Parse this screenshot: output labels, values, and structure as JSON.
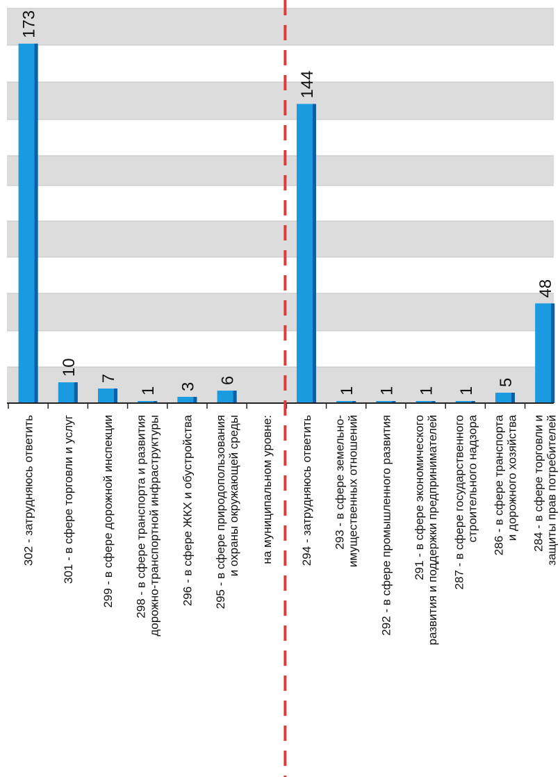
{
  "chart_data": {
    "type": "bar",
    "orientation": "rotated-90-ccw",
    "title": "",
    "xlabel": "",
    "ylabel": "",
    "ylim": [
      0,
      190
    ],
    "grid": "alternating-bands",
    "colors": {
      "bar": "#1a9ae0",
      "bar_shade": "#0d5fa8",
      "band": "#dcdcdc",
      "divider": "#e03a3a",
      "axis": "#222222"
    },
    "categories": [
      [
        "302 - затрудняюсь ответить"
      ],
      [
        "301 - в сфере торговли и услуг"
      ],
      [
        "299 - в сфере дорожной инспекции"
      ],
      [
        "298 - в сфере транспорта и развития",
        "дорожно-транспортной инфраструктуры"
      ],
      [
        "296 - в сфере ЖКХ и обустройства"
      ],
      [
        "295 - в сфере природопользования",
        "и охраны окружающей среды"
      ],
      [
        "на муниципальном уровне:"
      ],
      [
        "294 - затрудняюсь ответить"
      ],
      [
        "293 - в сфере земельно-",
        "имущественных отношений"
      ],
      [
        "292 - в сфере промышленного развития"
      ],
      [
        "291 - в сфере экономического",
        "развития и поддержки предпринимателей"
      ],
      [
        "287 - в сфере государственного",
        "строительного надзора"
      ],
      [
        "286 - в сфере транспорта",
        "и дорожного хозяйства"
      ],
      [
        "284 - в сфере торговли и",
        "защиты прав потребителей"
      ]
    ],
    "values": [
      173,
      10,
      7,
      1,
      3,
      6,
      null,
      144,
      1,
      1,
      1,
      1,
      5,
      48
    ],
    "value_labels": [
      "173",
      "10",
      "7",
      "1",
      "3",
      "6",
      "",
      "144",
      "1",
      "1",
      "1",
      "1",
      "5",
      "48"
    ]
  }
}
